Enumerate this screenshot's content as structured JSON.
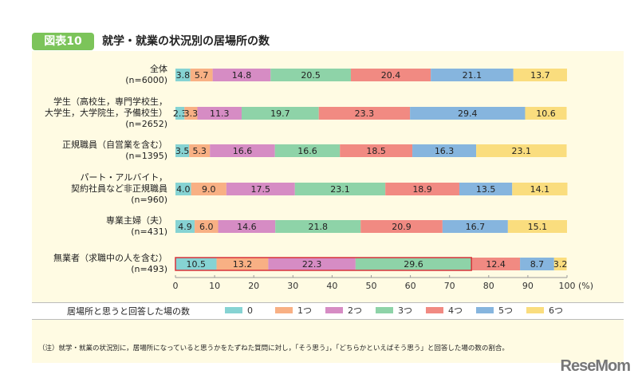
{
  "header": {
    "badge": "図表10",
    "title": "就学・就業の状況別の居場所の数"
  },
  "footnote": "（注）就学・就業の状況別に，居場所になっていると思うかをたずねた質問に対し，「そう思う」，「どちらかといえばそう思う」と回答した場の数の割合。",
  "logo": "ReseMom",
  "chart_data": {
    "type": "bar",
    "orientation": "horizontal-stacked-100",
    "title": "就学・就業の状況別の居場所の数",
    "xlabel": "(%)",
    "xlim": [
      0,
      100
    ],
    "xticks": [
      "0",
      "10",
      "20",
      "30",
      "40",
      "50",
      "60",
      "70",
      "80",
      "90",
      "100"
    ],
    "legend_title": "居場所と思うと回答した場の数",
    "legend_position": "bottom",
    "categories": [
      {
        "line1": "全体",
        "line2": "(n=6000)"
      },
      {
        "line1": "学生（高校生，専門学校生，",
        "line2": "大学生，大学院生，予備校生）",
        "line3": "(n=2652)"
      },
      {
        "line1": "正規職員（自営業を含む）",
        "line2": "(n=1395)"
      },
      {
        "line1": "パート・アルバイト，",
        "line2": "契約社員など非正規職員",
        "line3": "(n=960)"
      },
      {
        "line1": "専業主婦（夫）",
        "line2": "(n=431)"
      },
      {
        "line1": "無業者（求職中の人を含む）",
        "line2": "(n=493)"
      }
    ],
    "series": [
      {
        "name": "0",
        "color": "#86d3d3",
        "values": [
          3.8,
          2.3,
          3.5,
          4.0,
          4.9,
          10.5
        ]
      },
      {
        "name": "1つ",
        "color": "#f8b084",
        "values": [
          5.7,
          3.3,
          5.3,
          9.0,
          6.0,
          13.2
        ]
      },
      {
        "name": "2つ",
        "color": "#d68cc4",
        "values": [
          14.8,
          11.3,
          16.6,
          17.5,
          14.6,
          22.3
        ]
      },
      {
        "name": "3つ",
        "color": "#8ed3a8",
        "values": [
          20.5,
          19.7,
          16.6,
          23.1,
          21.8,
          29.6
        ]
      },
      {
        "name": "4つ",
        "color": "#f18a82",
        "values": [
          20.4,
          23.3,
          18.5,
          18.9,
          20.9,
          12.4
        ]
      },
      {
        "name": "5つ",
        "color": "#86b5de",
        "values": [
          21.1,
          29.4,
          16.3,
          13.5,
          16.7,
          8.7
        ]
      },
      {
        "name": "6つ",
        "color": "#fadd7e",
        "values": [
          13.7,
          10.6,
          23.1,
          14.1,
          15.1,
          3.2
        ]
      }
    ],
    "highlight": {
      "row": 5,
      "through_series": 3,
      "color": "#d9333a"
    }
  }
}
